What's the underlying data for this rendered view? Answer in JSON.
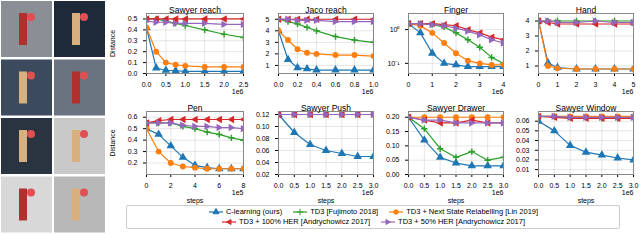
{
  "chart_data": [
    {
      "type": "line",
      "title": "Sawyer reach",
      "ylabel": "Distance",
      "annotation": "1e6",
      "grid": true,
      "legend": "bottom",
      "x": [
        0,
        0.25,
        0.5,
        0.75,
        1.0,
        1.5,
        2.0,
        2.5
      ],
      "xlim": [
        0,
        2.5
      ],
      "xticks": [
        {
          "value": 0,
          "label": "0.0"
        },
        0.5,
        {
          "value": 1,
          "label": "1.0"
        },
        1.5,
        {
          "value": 2,
          "label": "2.0"
        },
        2.5
      ],
      "ylim": [
        0,
        0.55
      ],
      "yticks": [
        {
          "value": 0,
          "label": "0.0"
        },
        0.1,
        0.2,
        0.3,
        0.4,
        0.5
      ],
      "series": [
        {
          "name": "C-learning (ours)",
          "color": "#1f77b4",
          "marker": "triangle-up",
          "values": [
            0.42,
            0.05,
            0.03,
            0.025,
            0.02,
            0.02,
            0.02,
            0.02
          ]
        },
        {
          "name": "TD3 [Fujimoto 2018]",
          "color": "#2ca02c",
          "marker": "plus",
          "values": [
            0.5,
            0.5,
            0.48,
            0.46,
            0.44,
            0.4,
            0.36,
            0.33
          ]
        },
        {
          "name": "TD3 + Next State Relabelling [Lin 2019]",
          "color": "#ff7f0e",
          "marker": "circle",
          "values": [
            0.42,
            0.2,
            0.1,
            0.08,
            0.07,
            0.06,
            0.06,
            0.06
          ]
        },
        {
          "name": "TD3 + 100% HER [Andrychowicz 2017]",
          "color": "#d62728",
          "marker": "triangle-left",
          "values": [
            0.5,
            0.5,
            0.5,
            0.5,
            0.5,
            0.5,
            0.5,
            0.5
          ]
        },
        {
          "name": "TD3 + 50% HER [Andrychowicz 2017]",
          "color": "#9467bd",
          "marker": "triangle-right",
          "values": [
            0.48,
            0.47,
            0.47,
            0.46,
            0.46,
            0.46,
            0.45,
            0.45
          ]
        }
      ]
    },
    {
      "type": "line",
      "title": "Jaco reach",
      "annotation": "1e6",
      "grid": true,
      "x": [
        0,
        0.1,
        0.2,
        0.3,
        0.4,
        0.6,
        0.8,
        1.0
      ],
      "xlim": [
        0,
        1.0
      ],
      "xticks": [
        {
          "value": 0,
          "label": "0.0"
        },
        0.2,
        0.4,
        0.6,
        0.8,
        {
          "value": 1,
          "label": "1.0"
        }
      ],
      "ylim": [
        0.3,
        5.5
      ],
      "yticks": [
        1,
        2,
        3,
        4,
        5
      ],
      "series": [
        {
          "name": "C-learning (ours)",
          "color": "#1f77b4",
          "marker": "triangle-up",
          "values": [
            4,
            1.5,
            0.8,
            0.7,
            0.6,
            0.6,
            0.6,
            0.6
          ]
        },
        {
          "name": "TD3 [Fujimoto 2018]",
          "color": "#2ca02c",
          "marker": "plus",
          "values": [
            5,
            4.8,
            4.6,
            4.3,
            4.0,
            3.5,
            3.2,
            3.0
          ]
        },
        {
          "name": "TD3 + Next State Relabelling [Lin 2019]",
          "color": "#ff7f0e",
          "marker": "circle",
          "values": [
            4,
            3.2,
            2.4,
            2.1,
            2.0,
            1.9,
            1.9,
            1.8
          ]
        },
        {
          "name": "TD3 + 100% HER [Andrychowicz 2017]",
          "color": "#d62728",
          "marker": "triangle-left",
          "values": [
            5,
            5,
            5,
            5,
            5,
            5,
            5,
            5
          ]
        },
        {
          "name": "TD3 + 50% HER [Andrychowicz 2017]",
          "color": "#9467bd",
          "marker": "triangle-right",
          "values": [
            5,
            5,
            4.9,
            4.9,
            4.9,
            4.8,
            4.8,
            4.8
          ]
        }
      ]
    },
    {
      "type": "line",
      "title": "Finger",
      "annotation": "1e6",
      "grid": true,
      "log": "y",
      "x": [
        0,
        0.5,
        1,
        1.5,
        2,
        2.5,
        3,
        3.5,
        4
      ],
      "xlim": [
        0,
        4
      ],
      "xticks": [
        0,
        1,
        2,
        3,
        4
      ],
      "ylim": [
        0.05,
        3
      ],
      "yticks": [
        {
          "value": 0.1,
          "label": "10⁻¹"
        },
        {
          "value": 1,
          "label": "10⁰"
        }
      ],
      "series": [
        {
          "name": "C-learning (ours)",
          "color": "#1f77b4",
          "marker": "triangle-up",
          "values": [
            1.5,
            0.8,
            0.2,
            0.1,
            0.09,
            0.08,
            0.08,
            0.08,
            0.08
          ]
        },
        {
          "name": "TD3 [Fujimoto 2018]",
          "color": "#2ca02c",
          "marker": "plus",
          "values": [
            1.5,
            1.5,
            1.4,
            1.2,
            0.8,
            0.5,
            0.3,
            0.15,
            0.1
          ]
        },
        {
          "name": "TD3 + Next State Relabelling [Lin 2019]",
          "color": "#ff7f0e",
          "marker": "circle",
          "values": [
            1.5,
            1.3,
            0.8,
            0.4,
            0.2,
            0.12,
            0.1,
            0.09,
            0.09
          ]
        },
        {
          "name": "TD3 + 100% HER [Andrychowicz 2017]",
          "color": "#d62728",
          "marker": "triangle-left",
          "values": [
            1.5,
            1.5,
            1.5,
            1.4,
            1.3,
            1.0,
            0.8,
            0.6,
            0.5
          ]
        },
        {
          "name": "TD3 + 50% HER [Andrychowicz 2017]",
          "color": "#9467bd",
          "marker": "triangle-right",
          "values": [
            1.5,
            1.5,
            1.4,
            1.3,
            1.1,
            0.9,
            0.7,
            0.5,
            0.4
          ]
        }
      ]
    },
    {
      "type": "line",
      "title": "Hand",
      "annotation": "1e6",
      "grid": true,
      "x": [
        0,
        0.5,
        1,
        2,
        3,
        4,
        5
      ],
      "xlim": [
        0,
        5
      ],
      "xticks": [
        0,
        1,
        2,
        3,
        4,
        5
      ],
      "ylim": [
        0.5,
        4.5
      ],
      "yticks": [
        1,
        2,
        3,
        4
      ],
      "series": [
        {
          "name": "C-learning (ours)",
          "color": "#1f77b4",
          "marker": "triangle-up",
          "values": [
            4,
            1.2,
            0.9,
            0.8,
            0.8,
            0.8,
            0.8
          ]
        },
        {
          "name": "TD3 [Fujimoto 2018]",
          "color": "#2ca02c",
          "marker": "plus",
          "values": [
            4,
            4,
            4,
            4,
            4,
            4,
            4
          ]
        },
        {
          "name": "TD3 + Next State Relabelling [Lin 2019]",
          "color": "#ff7f0e",
          "marker": "circle",
          "values": [
            4,
            1,
            0.85,
            0.8,
            0.8,
            0.8,
            0.8
          ]
        },
        {
          "name": "TD3 + 100% HER [Andrychowicz 2017]",
          "color": "#d62728",
          "marker": "triangle-left",
          "values": [
            4,
            3.9,
            3.8,
            3.8,
            3.8,
            3.8,
            3.8
          ]
        },
        {
          "name": "TD3 + 50% HER [Andrychowicz 2017]",
          "color": "#9467bd",
          "marker": "triangle-right",
          "values": [
            4,
            4,
            3.9,
            3.9,
            4,
            3.9,
            3.9
          ]
        }
      ]
    },
    {
      "type": "line",
      "title": "Pen",
      "ylabel": "Distance",
      "xlabel": "steps",
      "annotation": "1e5",
      "grid": true,
      "x": [
        0,
        1,
        2,
        3,
        4,
        5,
        6,
        7,
        8
      ],
      "xlim": [
        0,
        8
      ],
      "xticks": [
        0,
        2,
        4,
        6,
        8
      ],
      "ylim": [
        0.1,
        0.65
      ],
      "yticks": [
        0.2,
        0.3,
        0.4,
        0.5,
        0.6
      ],
      "series": [
        {
          "name": "C-learning (ours)",
          "color": "#1f77b4",
          "marker": "triangle-up",
          "values": [
            0.5,
            0.45,
            0.35,
            0.25,
            0.18,
            0.16,
            0.15,
            0.15,
            0.15
          ]
        },
        {
          "name": "TD3 [Fujimoto 2018]",
          "color": "#2ca02c",
          "marker": "plus",
          "values": [
            0.55,
            0.55,
            0.55,
            0.52,
            0.5,
            0.47,
            0.45,
            0.42,
            0.4
          ]
        },
        {
          "name": "TD3 + Next State Relabelling [Lin 2019]",
          "color": "#ff7f0e",
          "marker": "circle",
          "values": [
            0.5,
            0.3,
            0.2,
            0.17,
            0.16,
            0.15,
            0.15,
            0.15,
            0.15
          ]
        },
        {
          "name": "TD3 + 100% HER [Andrychowicz 2017]",
          "color": "#d62728",
          "marker": "triangle-left",
          "values": [
            0.55,
            0.57,
            0.58,
            0.58,
            0.58,
            0.58,
            0.58,
            0.58,
            0.58
          ]
        },
        {
          "name": "TD3 + 50% HER [Andrychowicz 2017]",
          "color": "#9467bd",
          "marker": "triangle-right",
          "values": [
            0.55,
            0.55,
            0.55,
            0.53,
            0.52,
            0.52,
            0.51,
            0.51,
            0.5
          ]
        }
      ]
    },
    {
      "type": "line",
      "title": "Sawyer Push",
      "xlabel": "steps",
      "annotation": "1e6",
      "grid": true,
      "x": [
        0,
        0.5,
        1,
        1.5,
        2,
        2.5,
        3
      ],
      "xlim": [
        0,
        3
      ],
      "xticks": [
        {
          "value": 0,
          "label": "0.0"
        },
        0.5,
        {
          "value": 1,
          "label": "1.0"
        },
        1.5,
        {
          "value": 2,
          "label": "2.0"
        },
        2.5,
        {
          "value": 3,
          "label": "3.0"
        }
      ],
      "ylim": [
        0.02,
        0.125
      ],
      "yticks": [
        0.02,
        0.04,
        0.06,
        0.08,
        {
          "value": 0.1,
          "label": "0.10"
        },
        0.12
      ],
      "series": [
        {
          "name": "C-learning (ours)",
          "color": "#1f77b4",
          "marker": "triangle-up",
          "values": [
            0.12,
            0.09,
            0.07,
            0.06,
            0.055,
            0.05,
            0.05
          ]
        },
        {
          "name": "TD3 [Fujimoto 2018]",
          "color": "#2ca02c",
          "marker": "plus",
          "values": [
            0.12,
            0.12,
            0.12,
            0.12,
            0.12,
            0.12,
            0.12
          ]
        },
        {
          "name": "TD3 + Next State Relabelling [Lin 2019]",
          "color": "#ff7f0e",
          "marker": "circle",
          "values": [
            0.12,
            0.12,
            0.12,
            0.12,
            0.12,
            0.12,
            0.12
          ]
        },
        {
          "name": "TD3 + 100% HER [Andrychowicz 2017]",
          "color": "#d62728",
          "marker": "triangle-left",
          "values": [
            0.12,
            0.12,
            0.12,
            0.12,
            0.12,
            0.12,
            0.12
          ]
        },
        {
          "name": "TD3 + 50% HER [Andrychowicz 2017]",
          "color": "#9467bd",
          "marker": "triangle-right",
          "values": [
            0.12,
            0.12,
            0.12,
            0.12,
            0.12,
            0.12,
            0.12
          ]
        }
      ]
    },
    {
      "type": "line",
      "title": "Sawyer Drawer",
      "xlabel": "steps",
      "annotation": "1e6",
      "grid": true,
      "x": [
        0,
        0.5,
        1,
        1.5,
        2,
        2.5,
        3
      ],
      "xlim": [
        0,
        3
      ],
      "xticks": [
        {
          "value": 0,
          "label": "0.0"
        },
        0.5,
        {
          "value": 1,
          "label": "1.0"
        },
        1.5,
        {
          "value": 2,
          "label": "2.0"
        },
        2.5,
        {
          "value": 3,
          "label": "3.0"
        }
      ],
      "ylim": [
        0,
        0.22
      ],
      "yticks": [
        {
          "value": 0,
          "label": "0.00"
        },
        0.05,
        {
          "value": 0.1,
          "label": "0.10"
        },
        0.15,
        {
          "value": 0.2,
          "label": "0.20"
        }
      ],
      "series": [
        {
          "name": "C-learning (ours)",
          "color": "#1f77b4",
          "marker": "triangle-up",
          "values": [
            0.2,
            0.12,
            0.06,
            0.04,
            0.03,
            0.03,
            0.03
          ]
        },
        {
          "name": "TD3 [Fujimoto 2018]",
          "color": "#2ca02c",
          "marker": "plus",
          "values": [
            0.2,
            0.16,
            0.09,
            0.06,
            0.08,
            0.05,
            0.06
          ]
        },
        {
          "name": "TD3 + Next State Relabelling [Lin 2019]",
          "color": "#ff7f0e",
          "marker": "circle",
          "values": [
            0.2,
            0.2,
            0.2,
            0.2,
            0.2,
            0.2,
            0.2
          ]
        },
        {
          "name": "TD3 + 100% HER [Andrychowicz 2017]",
          "color": "#d62728",
          "marker": "triangle-left",
          "values": [
            0.2,
            0.19,
            0.18,
            0.18,
            0.19,
            0.18,
            0.18
          ]
        },
        {
          "name": "TD3 + 50% HER [Andrychowicz 2017]",
          "color": "#9467bd",
          "marker": "triangle-right",
          "values": [
            0.2,
            0.19,
            0.19,
            0.18,
            0.18,
            0.18,
            0.18
          ]
        }
      ]
    },
    {
      "type": "line",
      "title": "Sawyer Window",
      "xlabel": "steps",
      "annotation": "1e6",
      "grid": true,
      "x": [
        0,
        0.5,
        1,
        1.5,
        2,
        2.5,
        3
      ],
      "xlim": [
        0,
        3
      ],
      "xticks": [
        {
          "value": 0,
          "label": "0.0"
        },
        0.5,
        {
          "value": 1,
          "label": "1.0"
        },
        1.5,
        {
          "value": 2,
          "label": "2.0"
        },
        2.5,
        {
          "value": 3,
          "label": "3.0"
        }
      ],
      "ylim": [
        0.005,
        0.07
      ],
      "yticks": [
        0.01,
        0.02,
        0.03,
        0.04,
        0.05,
        0.06
      ],
      "series": [
        {
          "name": "C-learning (ours)",
          "color": "#1f77b4",
          "marker": "triangle-up",
          "values": [
            0.06,
            0.05,
            0.035,
            0.028,
            0.025,
            0.022,
            0.02
          ]
        },
        {
          "name": "TD3 [Fujimoto 2018]",
          "color": "#2ca02c",
          "marker": "plus",
          "values": [
            0.065,
            0.065,
            0.064,
            0.064,
            0.063,
            0.063,
            0.063
          ]
        },
        {
          "name": "TD3 + Next State Relabelling [Lin 2019]",
          "color": "#ff7f0e",
          "marker": "circle",
          "values": [
            0.065,
            0.065,
            0.065,
            0.065,
            0.065,
            0.065,
            0.065
          ]
        },
        {
          "name": "TD3 + 100% HER [Andrychowicz 2017]",
          "color": "#d62728",
          "marker": "triangle-left",
          "values": [
            0.065,
            0.064,
            0.063,
            0.063,
            0.063,
            0.063,
            0.063
          ]
        },
        {
          "name": "TD3 + 50% HER [Andrychowicz 2017]",
          "color": "#9467bd",
          "marker": "triangle-right",
          "values": [
            0.065,
            0.065,
            0.064,
            0.064,
            0.064,
            0.064,
            0.064
          ]
        }
      ]
    }
  ]
}
